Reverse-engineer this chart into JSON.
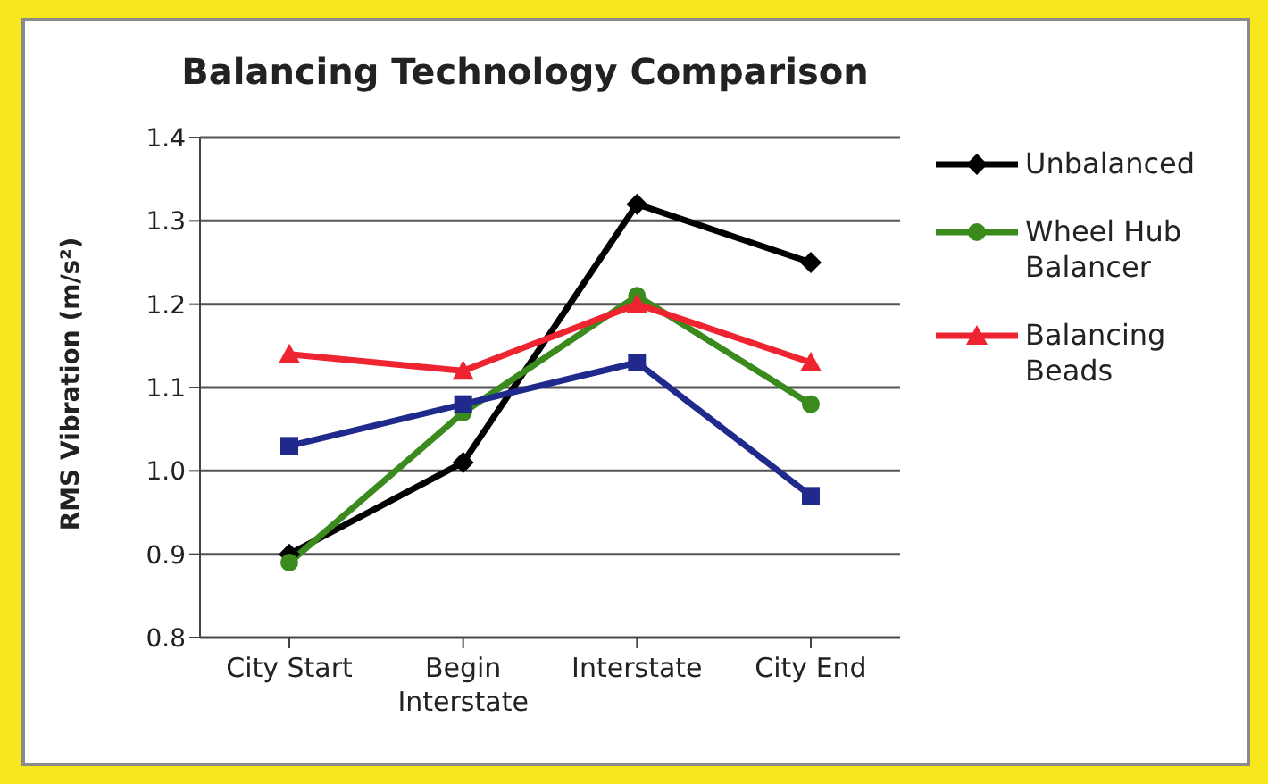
{
  "chart_data": {
    "type": "line",
    "title": "Balancing Technology Comparison",
    "ylabel": "RMS Vibration (m/s²)",
    "categories": [
      "City Start",
      "Begin Interstate",
      "Interstate",
      "City End"
    ],
    "series": [
      {
        "name": "Unbalanced",
        "color": "#000000",
        "marker": "diamond",
        "values": [
          0.9,
          1.01,
          1.32,
          1.25
        ]
      },
      {
        "name": "Wheel Hub Balancer",
        "color": "#3a8a1e",
        "marker": "circle",
        "values": [
          0.89,
          1.07,
          1.21,
          1.08
        ]
      },
      {
        "name": "Balancing Beads",
        "color": "#ee2430",
        "marker": "triangle",
        "values": [
          1.14,
          1.12,
          1.2,
          1.13
        ]
      },
      {
        "color": "#1f2a8c",
        "marker": "square",
        "values": [
          1.03,
          1.08,
          1.13,
          0.97
        ]
      }
    ],
    "ylim": [
      0.8,
      1.4
    ],
    "yticks": [
      0.8,
      0.9,
      {
        "value": 1,
        "label": "1.0"
      },
      1.1,
      1.2,
      1.3,
      1.4
    ],
    "grid": "y",
    "legend": "right",
    "line_style": "solid"
  }
}
